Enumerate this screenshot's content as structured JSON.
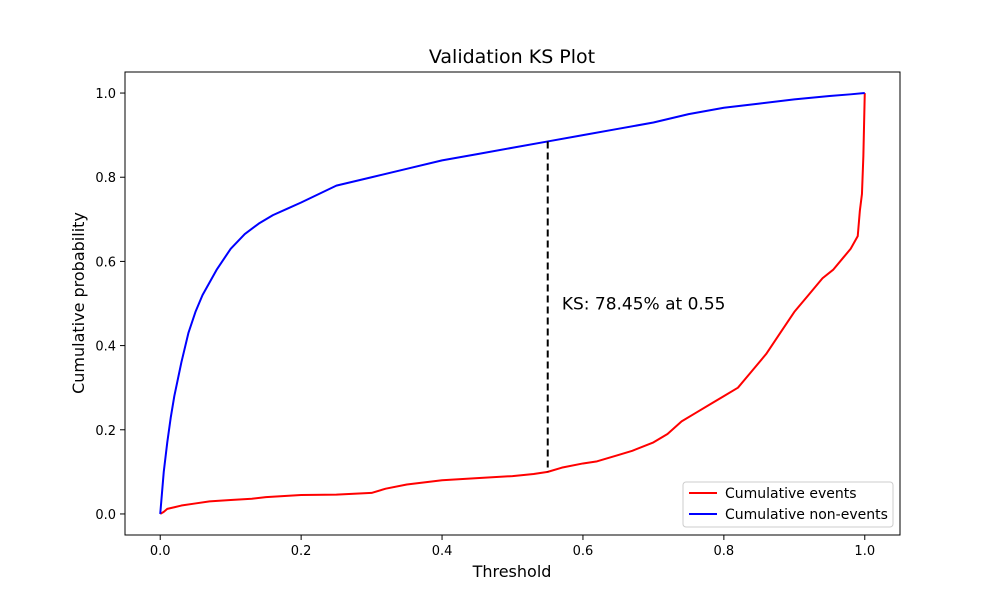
{
  "chart_data": {
    "type": "line",
    "title": "Validation KS Plot",
    "xlabel": "Threshold",
    "ylabel": "Cumulative probability",
    "xlim": [
      -0.05,
      1.05
    ],
    "ylim": [
      -0.05,
      1.05
    ],
    "xticks": [
      0.0,
      0.2,
      0.4,
      0.6,
      0.8,
      1.0
    ],
    "xtick_labels": [
      "0.0",
      "0.2",
      "0.4",
      "0.6",
      "0.8",
      "1.0"
    ],
    "yticks": [
      0.0,
      0.2,
      0.4,
      0.6,
      0.8,
      1.0
    ],
    "ytick_labels": [
      "0.0",
      "0.2",
      "0.4",
      "0.6",
      "0.8",
      "1.0"
    ],
    "grid": false,
    "legend_position": "lower-right",
    "series": [
      {
        "name": "Cumulative events",
        "color": "#ff0000",
        "x": [
          0.0,
          0.005,
          0.01,
          0.02,
          0.03,
          0.05,
          0.07,
          0.1,
          0.13,
          0.15,
          0.2,
          0.25,
          0.3,
          0.32,
          0.35,
          0.4,
          0.45,
          0.5,
          0.53,
          0.55,
          0.57,
          0.6,
          0.62,
          0.65,
          0.67,
          0.7,
          0.72,
          0.74,
          0.76,
          0.78,
          0.8,
          0.82,
          0.84,
          0.86,
          0.88,
          0.9,
          0.92,
          0.94,
          0.955,
          0.97,
          0.98,
          0.99,
          0.993,
          0.996,
          0.998,
          1.0
        ],
        "y": [
          0.0,
          0.005,
          0.012,
          0.016,
          0.02,
          0.025,
          0.03,
          0.033,
          0.036,
          0.04,
          0.045,
          0.046,
          0.05,
          0.06,
          0.07,
          0.08,
          0.085,
          0.09,
          0.095,
          0.1,
          0.11,
          0.12,
          0.125,
          0.14,
          0.15,
          0.17,
          0.19,
          0.22,
          0.24,
          0.26,
          0.28,
          0.3,
          0.34,
          0.38,
          0.43,
          0.48,
          0.52,
          0.56,
          0.58,
          0.61,
          0.63,
          0.66,
          0.72,
          0.76,
          0.85,
          1.0
        ]
      },
      {
        "name": "Cumulative non-events",
        "color": "#0000ff",
        "x": [
          0.0,
          0.005,
          0.01,
          0.015,
          0.02,
          0.03,
          0.04,
          0.05,
          0.06,
          0.08,
          0.1,
          0.12,
          0.14,
          0.16,
          0.18,
          0.2,
          0.25,
          0.3,
          0.35,
          0.4,
          0.45,
          0.5,
          0.55,
          0.6,
          0.65,
          0.7,
          0.75,
          0.8,
          0.85,
          0.9,
          0.95,
          0.98,
          1.0
        ],
        "y": [
          0.0,
          0.1,
          0.17,
          0.23,
          0.28,
          0.36,
          0.43,
          0.48,
          0.52,
          0.58,
          0.63,
          0.665,
          0.69,
          0.71,
          0.725,
          0.74,
          0.78,
          0.8,
          0.82,
          0.84,
          0.855,
          0.87,
          0.885,
          0.9,
          0.915,
          0.93,
          0.95,
          0.965,
          0.975,
          0.985,
          0.993,
          0.997,
          1.0
        ]
      }
    ],
    "ks_line": {
      "x": 0.55,
      "y_from": 0.1,
      "y_to": 0.885,
      "color": "#000000",
      "style": "dashed"
    },
    "annotations": [
      {
        "text": "KS: 78.45% at 0.55",
        "x": 0.57,
        "y": 0.5
      }
    ]
  }
}
